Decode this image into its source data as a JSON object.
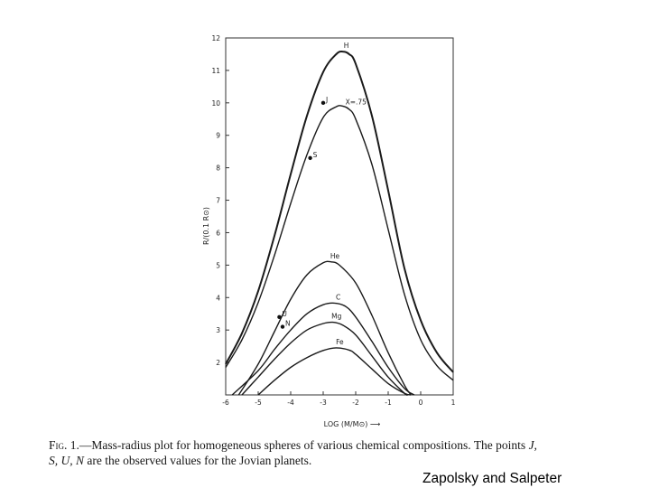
{
  "chart_data": {
    "type": "line",
    "title": "",
    "xlabel": "LOG (M/M⊙) ⟶",
    "ylabel": "R/(0.1 R⊙)",
    "xlim": [
      -6,
      1
    ],
    "ylim": [
      1,
      12
    ],
    "x_ticks": [
      "-6",
      "-5",
      "-4",
      "-3",
      "-2",
      "-1",
      "0",
      "1"
    ],
    "y_ticks": [
      "2",
      "3",
      "4",
      "5",
      "6",
      "7",
      "8",
      "9",
      "10",
      "11",
      "12"
    ],
    "grid": false,
    "series": [
      {
        "name": "H",
        "points": [
          [
            -6,
            1.95
          ],
          [
            -5.5,
            2.9
          ],
          [
            -5,
            4.2
          ],
          [
            -4.5,
            5.9
          ],
          [
            -4,
            7.8
          ],
          [
            -3.5,
            9.6
          ],
          [
            -3,
            10.95
          ],
          [
            -2.6,
            11.5
          ],
          [
            -2.4,
            11.58
          ],
          [
            -2.2,
            11.5
          ],
          [
            -2,
            11.2
          ],
          [
            -1.5,
            9.6
          ],
          [
            -1,
            7.3
          ],
          [
            -0.5,
            4.9
          ],
          [
            0,
            3.3
          ],
          [
            0.5,
            2.3
          ],
          [
            1,
            1.7
          ]
        ]
      },
      {
        "name": "X=.75",
        "points": [
          [
            -6,
            1.85
          ],
          [
            -5.5,
            2.7
          ],
          [
            -5,
            3.85
          ],
          [
            -4.5,
            5.3
          ],
          [
            -4,
            6.9
          ],
          [
            -3.5,
            8.4
          ],
          [
            -3,
            9.55
          ],
          [
            -2.6,
            9.88
          ],
          [
            -2.4,
            9.9
          ],
          [
            -2.2,
            9.8
          ],
          [
            -2,
            9.5
          ],
          [
            -1.5,
            8.1
          ],
          [
            -1,
            6.1
          ],
          [
            -0.5,
            4.1
          ],
          [
            0,
            2.7
          ],
          [
            0.5,
            1.9
          ],
          [
            1,
            1.45
          ]
        ]
      },
      {
        "name": "He",
        "points": [
          [
            -5.6,
            1
          ],
          [
            -5,
            1.95
          ],
          [
            -4.5,
            2.95
          ],
          [
            -4,
            3.95
          ],
          [
            -3.5,
            4.7
          ],
          [
            -3,
            5.07
          ],
          [
            -2.75,
            5.1
          ],
          [
            -2.5,
            5.0
          ],
          [
            -2,
            4.45
          ],
          [
            -1.5,
            3.45
          ],
          [
            -1,
            2.3
          ],
          [
            -0.5,
            1.3
          ],
          [
            -0.3,
            1
          ]
        ]
      },
      {
        "name": "C",
        "points": [
          [
            -5.8,
            1
          ],
          [
            -5,
            1.75
          ],
          [
            -4.5,
            2.4
          ],
          [
            -4,
            3.0
          ],
          [
            -3.5,
            3.5
          ],
          [
            -3,
            3.78
          ],
          [
            -2.65,
            3.83
          ],
          [
            -2.3,
            3.72
          ],
          [
            -2,
            3.4
          ],
          [
            -1.5,
            2.65
          ],
          [
            -1,
            1.85
          ],
          [
            -0.5,
            1.2
          ],
          [
            -0.2,
            1
          ]
        ]
      },
      {
        "name": "Mg",
        "points": [
          [
            -5.5,
            1
          ],
          [
            -5,
            1.55
          ],
          [
            -4.5,
            2.1
          ],
          [
            -4,
            2.6
          ],
          [
            -3.5,
            3.0
          ],
          [
            -3,
            3.2
          ],
          [
            -2.7,
            3.24
          ],
          [
            -2.4,
            3.15
          ],
          [
            -2,
            2.85
          ],
          [
            -1.5,
            2.2
          ],
          [
            -1,
            1.55
          ],
          [
            -0.5,
            1.05
          ],
          [
            -0.4,
            1
          ]
        ]
      },
      {
        "name": "Fe",
        "points": [
          [
            -5,
            1
          ],
          [
            -4.5,
            1.45
          ],
          [
            -4,
            1.85
          ],
          [
            -3.5,
            2.15
          ],
          [
            -3,
            2.37
          ],
          [
            -2.6,
            2.45
          ],
          [
            -2.2,
            2.38
          ],
          [
            -2,
            2.25
          ],
          [
            -1.5,
            1.8
          ],
          [
            -1,
            1.35
          ],
          [
            -0.5,
            1.05
          ],
          [
            -0.3,
            1
          ]
        ]
      }
    ],
    "planets": [
      {
        "label": "J",
        "x": -3.0,
        "y": 10.0
      },
      {
        "label": "S",
        "x": -3.4,
        "y": 8.3
      },
      {
        "label": "U",
        "x": -4.35,
        "y": 3.4
      },
      {
        "label": "N",
        "x": -4.25,
        "y": 3.1
      }
    ]
  },
  "caption": {
    "lead": "Fig. 1.",
    "text": "—Mass-radius plot for homogeneous spheres of various chemical compositions. The points ",
    "points_first": "J,",
    "points_rest": "S, U, N",
    "tail": " are the observed values for the Jovian planets."
  },
  "credit": "Zapolsky and Salpeter"
}
